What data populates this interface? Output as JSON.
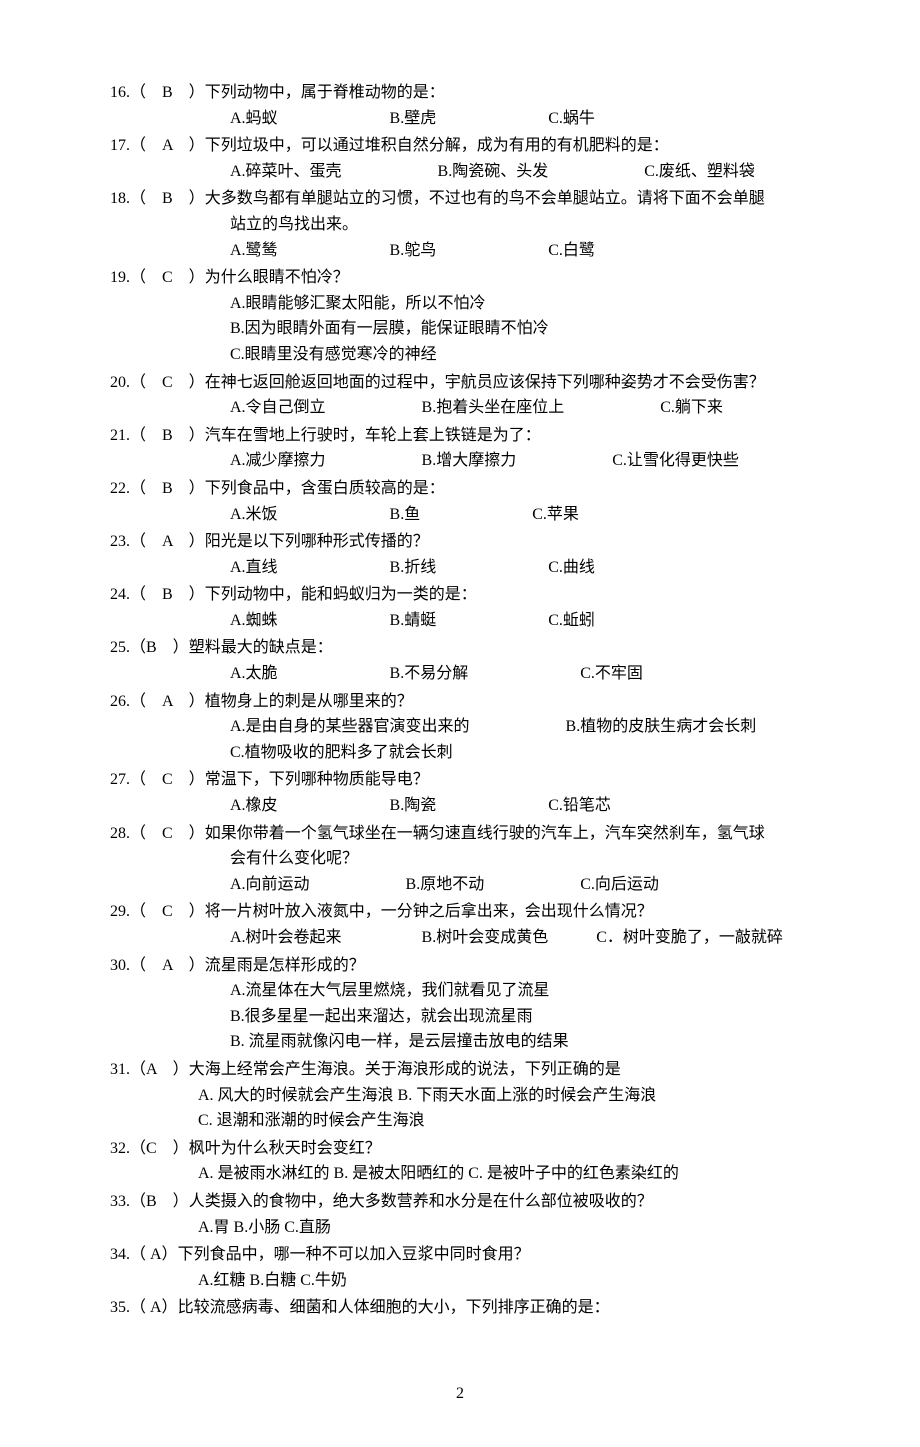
{
  "questions": [
    {
      "num": "16.（　B　）",
      "stem": "下列动物中，属于脊椎动物的是：",
      "opts": "A.蚂蚁　　　　　　　B.壁虎　　　　　　　C.蜗牛"
    },
    {
      "num": "17.（　A　）",
      "stem": "下列垃圾中，可以通过堆积自然分解，成为有用的有机肥料的是：",
      "opts": "A.碎菜叶、蛋壳　　　　　　B.陶瓷碗、头发　　　　　　C.废纸、塑料袋"
    },
    {
      "num": "18.（　B　）",
      "stem": "大多数鸟都有单腿站立的习惯，不过也有的鸟不会单腿站立。请将下面不会单腿",
      "stem2": "站立的鸟找出来。",
      "opts": "A.鹭鸶　　　　　　　B.鸵鸟　　　　　　　C.白鹭"
    },
    {
      "num": "19.（　C　）",
      "stem": "为什么眼睛不怕冷？",
      "opts_lines": [
        "A.眼睛能够汇聚太阳能，所以不怕冷",
        "B.因为眼睛外面有一层膜，能保证眼睛不怕冷",
        "C.眼睛里没有感觉寒冷的神经"
      ]
    },
    {
      "num": "20.（　C　）",
      "stem": "在神七返回舱返回地面的过程中，宇航员应该保持下列哪种姿势才不会受伤害？",
      "opts": "A.令自己倒立　　　　　　B.抱着头坐在座位上　　　　　　C.躺下来"
    },
    {
      "num": "21.（　B　）",
      "stem": "汽车在雪地上行驶时，车轮上套上铁链是为了：",
      "opts": "A.减少摩擦力　　　　　　B.增大摩擦力　　　　　　C.让雪化得更快些"
    },
    {
      "num": "22.（　B　）",
      "stem": "下列食品中，含蛋白质较高的是：",
      "opts": "A.米饭　　　　　　　B.鱼　　　　　　　C.苹果"
    },
    {
      "num": "23.（　A　）",
      "stem": "阳光是以下列哪种形式传播的？",
      "opts": "A.直线　　　　　　　B.折线　　　　　　　C.曲线"
    },
    {
      "num": "24.（　B　）",
      "stem": "下列动物中，能和蚂蚁归为一类的是：",
      "opts": "A.蜘蛛　　　　　　　B.蜻蜓　　　　　　　C.蚯蚓"
    },
    {
      "num": "25.（B　）",
      "stem": "塑料最大的缺点是：",
      "opts": "A.太脆　　　　　　　B.不易分解　　　　　　　C.不牢固"
    },
    {
      "num": "26.（　A　）",
      "stem": "植物身上的刺是从哪里来的？",
      "opts_lines": [
        "A.是由自身的某些器官演变出来的　　　　　　B.植物的皮肤生病才会长刺",
        "C.植物吸收的肥料多了就会长刺"
      ]
    },
    {
      "num": "27.（　C　）",
      "stem": "常温下，下列哪种物质能导电？",
      "opts": "A.橡皮　　　　　　　B.陶瓷　　　　　　　C.铅笔芯"
    },
    {
      "num": "28.（　C　）",
      "stem": "如果你带着一个氢气球坐在一辆匀速直线行驶的汽车上，汽车突然刹车，氢气球",
      "stem2": "会有什么变化呢？",
      "opts": "A.向前运动　　　　　　B.原地不动　　　　　　C.向后运动"
    },
    {
      "num": "29.（　C　）",
      "stem": "将一片树叶放入液氮中，一分钟之后拿出来，会出现什么情况？",
      "opts": "A.树叶会卷起来　　　　　B.树叶会变成黄色　　　C．树叶变脆了，一敲就碎"
    },
    {
      "num": "30.（　A　）",
      "stem": "流星雨是怎样形成的？",
      "opts_lines": [
        "A.流星体在大气层里燃烧，我们就看见了流星",
        "B.很多星星一起出来溜达，就会出现流星雨",
        "B.  流星雨就像闪电一样，是云层撞击放电的结果"
      ]
    },
    {
      "num": "31.（A　）",
      "stem": "大海上经常会产生海浪。关于海浪形成的说法，下列正确的是",
      "opts_lines_narrow": [
        "A. 风大的时候就会产生海浪  B.  下雨天水面上涨的时候会产生海浪",
        "C.  退潮和涨潮的时候会产生海浪"
      ]
    },
    {
      "num": "32.（C　）",
      "stem": "枫叶为什么秋天时会变红？",
      "opts_narrow": "A. 是被雨水淋红的  B. 是被太阳晒红的  C. 是被叶子中的红色素染红的"
    },
    {
      "num": "33.（B　）",
      "stem": "人类摄入的食物中，绝大多数营养和水分是在什么部位被吸收的？",
      "opts_narrow": "A.胃  B.小肠  C.直肠"
    },
    {
      "num": "34.（ A）",
      "stem": "下列食品中，哪一种不可以加入豆浆中同时食用？",
      "opts_narrow": "A.红糖  B.白糖  C.牛奶"
    },
    {
      "num": "35.（ A）",
      "stem": "比较流感病毒、细菌和人体细胞的大小，下列排序正确的是："
    }
  ],
  "page_num": "2"
}
